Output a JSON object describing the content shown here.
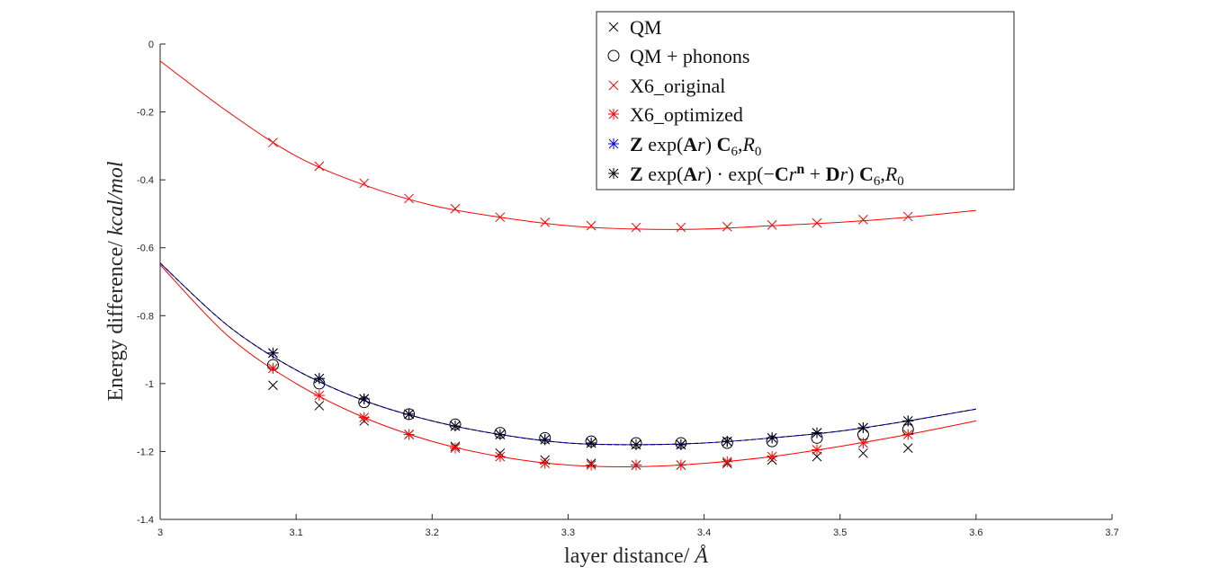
{
  "chart_data": {
    "type": "scatter",
    "xlabel": "layer distance/ ",
    "xlabel_unit": "Å",
    "ylabel": "Energy difference/ ",
    "ylabel_unit": "kcal/mol",
    "xlim": [
      3.0,
      3.7
    ],
    "ylim": [
      -1.4,
      0.0
    ],
    "xticks": [
      3.0,
      3.1,
      3.2,
      3.3,
      3.4,
      3.5,
      3.6,
      3.7
    ],
    "xtick_labels": [
      "3",
      "3.1",
      "3.2",
      "3.3",
      "3.4",
      "3.5",
      "3.6",
      "3.7"
    ],
    "yticks": [
      -1.4,
      -1.2,
      -1.0,
      -0.8,
      -0.6,
      -0.4,
      -0.2,
      0.0
    ],
    "ytick_labels": [
      "-1.4",
      "-1.2",
      "-1",
      "-0.8",
      "-0.6",
      "-0.4",
      "-0.2",
      "0"
    ],
    "grid": false,
    "legend_position": "top-right",
    "x": [
      3.083,
      3.117,
      3.15,
      3.183,
      3.217,
      3.25,
      3.283,
      3.317,
      3.35,
      3.383,
      3.417,
      3.45,
      3.483,
      3.517,
      3.55
    ],
    "series": [
      {
        "name": "QM",
        "marker": "x",
        "color": "#000000",
        "values": [
          -1.005,
          -1.065,
          -1.11,
          -1.15,
          -1.185,
          -1.205,
          -1.225,
          -1.235,
          -1.24,
          -1.24,
          -1.235,
          -1.225,
          -1.215,
          -1.205,
          -1.19
        ]
      },
      {
        "name": "QM + phonons",
        "marker": "o",
        "color": "#000000",
        "values": [
          -0.945,
          -1.0,
          -1.055,
          -1.09,
          -1.12,
          -1.145,
          -1.16,
          -1.17,
          -1.175,
          -1.175,
          -1.175,
          -1.17,
          -1.16,
          -1.15,
          -1.135
        ]
      },
      {
        "name": "X6_original",
        "marker": "x",
        "color": "#ff0000",
        "values": [
          -0.29,
          -0.36,
          -0.41,
          -0.455,
          -0.485,
          -0.51,
          -0.525,
          -0.535,
          -0.54,
          -0.54,
          -0.538,
          -0.533,
          -0.527,
          -0.517,
          -0.508
        ]
      },
      {
        "name": "X6_optimized",
        "marker": "*",
        "color": "#ff0000",
        "values": [
          -0.955,
          -1.035,
          -1.1,
          -1.15,
          -1.19,
          -1.215,
          -1.235,
          -1.24,
          -1.24,
          -1.24,
          -1.23,
          -1.215,
          -1.195,
          -1.175,
          -1.15
        ]
      },
      {
        "name": "Z exp(Ar) C6,R0",
        "marker": "*",
        "color": "#0000ff",
        "values": [
          -0.91,
          -0.985,
          -1.045,
          -1.09,
          -1.125,
          -1.15,
          -1.165,
          -1.175,
          -1.18,
          -1.18,
          -1.17,
          -1.16,
          -1.145,
          -1.13,
          -1.11
        ]
      },
      {
        "name": "Z exp(Ar) · exp(-Cr^n + Dr) C6,R0",
        "marker": "*",
        "color": "#000000",
        "values": [
          -0.91,
          -0.985,
          -1.045,
          -1.09,
          -1.125,
          -1.15,
          -1.165,
          -1.175,
          -1.18,
          -1.18,
          -1.17,
          -1.16,
          -1.145,
          -1.13,
          -1.11
        ]
      }
    ],
    "curves": [
      {
        "color": "#ff0000",
        "style": "solid",
        "x": [
          3.0,
          3.05,
          3.1,
          3.15,
          3.2,
          3.25,
          3.3,
          3.35,
          3.4,
          3.45,
          3.5,
          3.55,
          3.6
        ],
        "values": [
          -0.05,
          -0.2,
          -0.33,
          -0.415,
          -0.475,
          -0.51,
          -0.535,
          -0.545,
          -0.545,
          -0.535,
          -0.525,
          -0.51,
          -0.49
        ]
      },
      {
        "color": "#ff0000",
        "style": "solid",
        "x": [
          3.0,
          3.05,
          3.1,
          3.15,
          3.2,
          3.25,
          3.3,
          3.35,
          3.4,
          3.45,
          3.5,
          3.55,
          3.6
        ],
        "values": [
          -0.65,
          -0.86,
          -1.0,
          -1.1,
          -1.17,
          -1.215,
          -1.24,
          -1.245,
          -1.235,
          -1.215,
          -1.185,
          -1.15,
          -1.11
        ]
      },
      {
        "color": "#0000ff",
        "style": "solid",
        "x": [
          3.0,
          3.05,
          3.1,
          3.15,
          3.2,
          3.25,
          3.3,
          3.35,
          3.4,
          3.45,
          3.5,
          3.55,
          3.6
        ],
        "values": [
          -0.645,
          -0.83,
          -0.96,
          -1.05,
          -1.11,
          -1.15,
          -1.175,
          -1.18,
          -1.175,
          -1.16,
          -1.14,
          -1.11,
          -1.075
        ]
      },
      {
        "color": "#000000",
        "style": "dashed",
        "x": [
          3.0,
          3.05,
          3.1,
          3.15,
          3.2,
          3.25,
          3.3,
          3.35,
          3.4,
          3.45,
          3.5,
          3.55,
          3.6
        ],
        "values": [
          -0.645,
          -0.83,
          -0.96,
          -1.05,
          -1.11,
          -1.15,
          -1.175,
          -1.18,
          -1.175,
          -1.16,
          -1.14,
          -1.11,
          -1.075
        ]
      }
    ],
    "legend": {
      "entries": [
        {
          "marker": "x",
          "color": "#000000",
          "text": "QM"
        },
        {
          "marker": "o",
          "color": "#000000",
          "text": "QM + phonons"
        },
        {
          "marker": "x",
          "color": "#ff0000",
          "text": "X6_original"
        },
        {
          "marker": "*",
          "color": "#ff0000",
          "text": "X6_optimized"
        },
        {
          "marker": "*",
          "color": "#0000ff",
          "parts": [
            [
              "Z",
              "b"
            ],
            [
              " exp(",
              ""
            ],
            [
              "A",
              "b"
            ],
            [
              "r",
              "i"
            ],
            [
              ") ",
              ""
            ],
            [
              "C",
              "b"
            ],
            [
              "6",
              "s"
            ],
            [
              ",",
              ""
            ],
            [
              "R",
              "i"
            ],
            [
              "0",
              "s"
            ]
          ]
        },
        {
          "marker": "*",
          "color": "#000000",
          "parts": [
            [
              "Z",
              "b"
            ],
            [
              " exp(",
              ""
            ],
            [
              "A",
              "b"
            ],
            [
              "r",
              "i"
            ],
            [
              ") · exp(−",
              ""
            ],
            [
              "C",
              "b"
            ],
            [
              "r",
              "i"
            ],
            [
              "n",
              "bsup"
            ],
            [
              " + ",
              ""
            ],
            [
              "D",
              "b"
            ],
            [
              "r",
              "i"
            ],
            [
              ") ",
              ""
            ],
            [
              "C",
              "b"
            ],
            [
              "6",
              "s"
            ],
            [
              ",",
              ""
            ],
            [
              "R",
              "i"
            ],
            [
              "0",
              "s"
            ]
          ]
        }
      ]
    }
  }
}
